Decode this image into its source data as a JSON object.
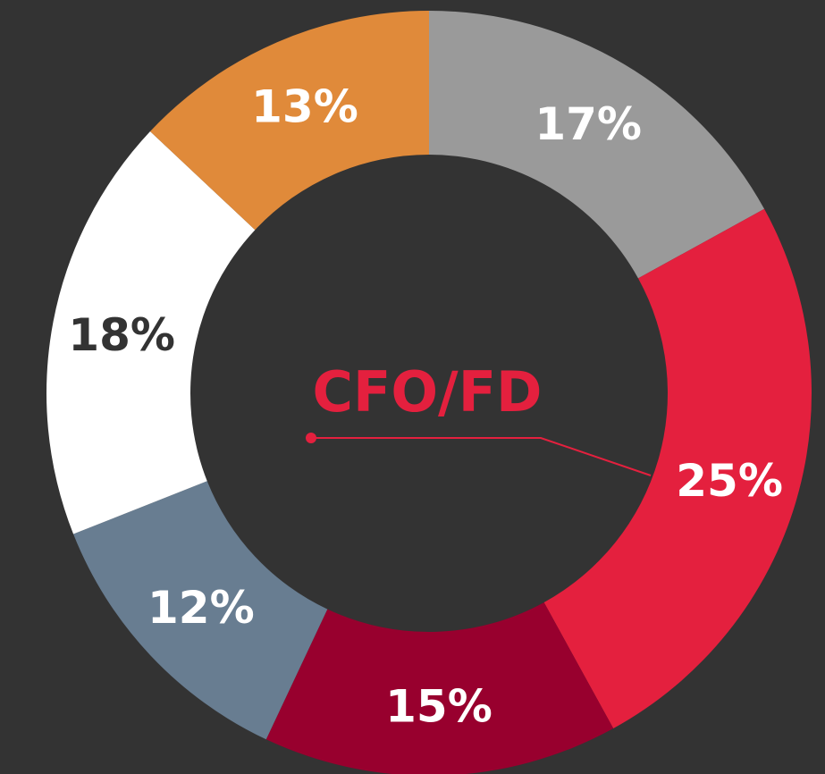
{
  "chart_data": {
    "type": "donut",
    "center_label": "CFO/FD",
    "values": [
      17,
      25,
      15,
      12,
      18,
      13
    ],
    "value_labels": [
      "17%",
      "25%",
      "15%",
      "12%",
      "18%",
      "13%"
    ],
    "colors": [
      "#9a9a9a",
      "#e4203e",
      "#98002e",
      "#687d91",
      "#ffffff",
      "#e08a3a"
    ],
    "label_colors": [
      "#ffffff",
      "#ffffff",
      "#ffffff",
      "#ffffff",
      "#333333",
      "#ffffff"
    ],
    "center_label_color": "#e4203e"
  }
}
